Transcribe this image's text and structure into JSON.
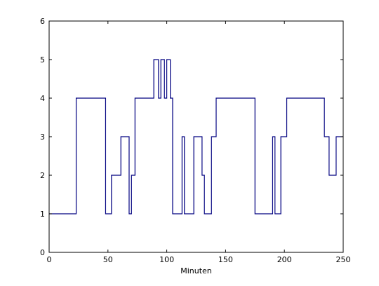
{
  "chart_data": {
    "type": "line",
    "step": true,
    "xlabel": "Minuten",
    "ylabel": "",
    "title": "",
    "xlim": [
      0,
      250
    ],
    "ylim": [
      0,
      6
    ],
    "xticks": [
      0,
      50,
      100,
      150,
      200,
      250
    ],
    "yticks": [
      0,
      1,
      2,
      3,
      4,
      5,
      6
    ],
    "grid": false,
    "line_color": "#000080",
    "series": [
      {
        "x": [
          0,
          23,
          23,
          48,
          48,
          53,
          53,
          61,
          61,
          68,
          68,
          70,
          70,
          73,
          73,
          89,
          89,
          93,
          93,
          95,
          95,
          98,
          98,
          100,
          100,
          103,
          103,
          105,
          105,
          113,
          113,
          115,
          115,
          123,
          123,
          130,
          130,
          132,
          132,
          138,
          138,
          142,
          142,
          175,
          175,
          190,
          190,
          192,
          192,
          197,
          197,
          202,
          202,
          234,
          234,
          238,
          238,
          244,
          244,
          250
        ],
        "y": [
          1,
          1,
          4,
          4,
          1,
          1,
          2,
          2,
          3,
          3,
          1,
          1,
          2,
          2,
          4,
          4,
          5,
          5,
          4,
          4,
          5,
          5,
          4,
          4,
          5,
          5,
          4,
          4,
          1,
          1,
          3,
          3,
          1,
          1,
          3,
          3,
          2,
          2,
          1,
          1,
          3,
          3,
          4,
          4,
          1,
          1,
          3,
          3,
          1,
          1,
          3,
          3,
          4,
          4,
          3,
          3,
          2,
          2,
          3,
          3
        ]
      }
    ]
  }
}
